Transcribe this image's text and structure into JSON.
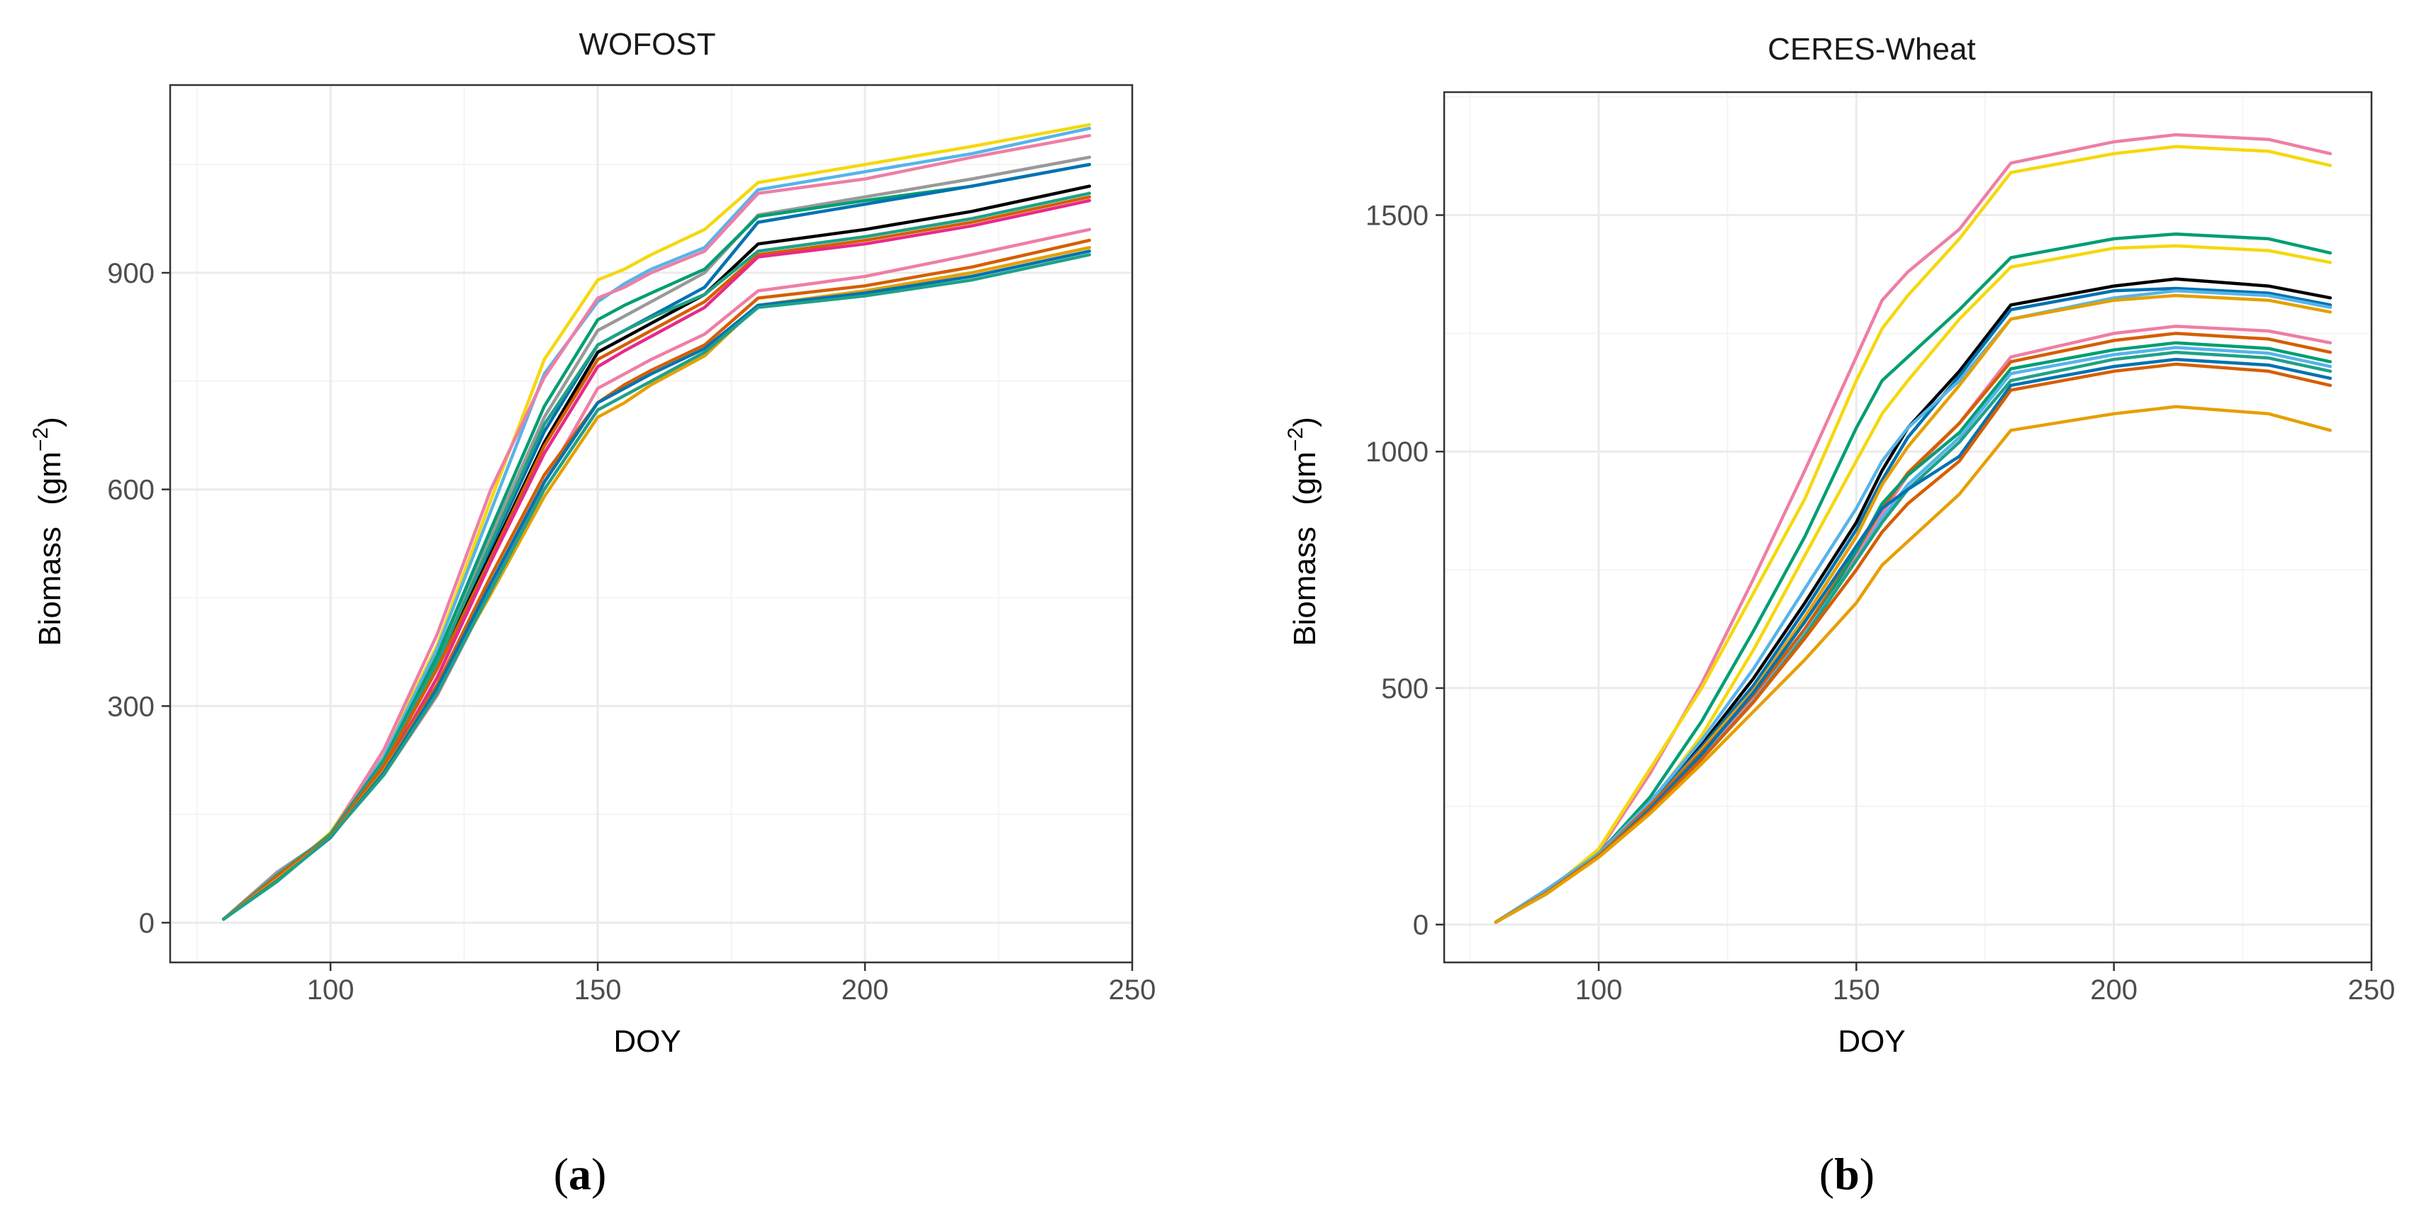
{
  "panels": [
    {
      "label": "a"
    },
    {
      "label": "b"
    }
  ],
  "chart_data": [
    {
      "type": "line",
      "title": "WOFOST",
      "xlabel": "DOY",
      "ylabel": "Biomass",
      "ylabel_unit": "(gm",
      "ylabel_exp": "−2",
      "ylabel_close": ")",
      "xlim": [
        70,
        250
      ],
      "ylim": [
        -55,
        1160
      ],
      "xticks": [
        100,
        150,
        200,
        250
      ],
      "yticks": [
        0,
        300,
        600,
        900
      ],
      "xtick_labels": [
        "100",
        "150",
        "200",
        "250"
      ],
      "ytick_labels": [
        "0",
        "300",
        "600",
        "900"
      ],
      "grid": true,
      "x": [
        80,
        90,
        100,
        110,
        120,
        130,
        140,
        150,
        155,
        160,
        170,
        180,
        200,
        220,
        242
      ],
      "series": [
        {
          "color": "#F5D80D",
          "values": [
            5,
            60,
            125,
            235,
            385,
            585,
            780,
            890,
            905,
            925,
            960,
            1025,
            1050,
            1075,
            1105
          ]
        },
        {
          "color": "#56B4E9",
          "values": [
            5,
            65,
            120,
            230,
            380,
            570,
            760,
            860,
            885,
            905,
            935,
            1015,
            1040,
            1065,
            1100
          ]
        },
        {
          "color": "#EE7EA6",
          "values": [
            5,
            62,
            122,
            240,
            400,
            600,
            755,
            865,
            880,
            900,
            930,
            1010,
            1030,
            1060,
            1090
          ]
        },
        {
          "color": "#999999",
          "values": [
            5,
            70,
            120,
            215,
            365,
            535,
            700,
            820,
            840,
            860,
            900,
            980,
            1005,
            1030,
            1060
          ]
        },
        {
          "color": "#009E73",
          "values": [
            5,
            62,
            123,
            225,
            370,
            545,
            715,
            835,
            855,
            872,
            905,
            978,
            1000,
            1020,
            1050
          ]
        },
        {
          "color": "#0072B2",
          "values": [
            5,
            58,
            120,
            215,
            355,
            520,
            680,
            800,
            820,
            840,
            880,
            970,
            995,
            1020,
            1050
          ]
        },
        {
          "color": "#000000",
          "values": [
            5,
            63,
            121,
            220,
            355,
            510,
            665,
            790,
            810,
            830,
            870,
            940,
            960,
            985,
            1020
          ]
        },
        {
          "color": "#1FA187",
          "values": [
            5,
            66,
            122,
            222,
            360,
            525,
            690,
            800,
            820,
            838,
            870,
            930,
            950,
            975,
            1010
          ]
        },
        {
          "color": "#D55E00",
          "values": [
            5,
            60,
            120,
            218,
            352,
            505,
            660,
            780,
            800,
            820,
            860,
            925,
            945,
            970,
            1005
          ]
        },
        {
          "color": "#E8298A",
          "values": [
            5,
            60,
            118,
            210,
            340,
            500,
            650,
            770,
            792,
            812,
            852,
            922,
            940,
            965,
            1000
          ]
        },
        {
          "color": "#EE7EA6",
          "values": [
            5,
            62,
            120,
            205,
            315,
            460,
            610,
            740,
            760,
            780,
            815,
            875,
            895,
            925,
            960
          ]
        },
        {
          "color": "#D55E00",
          "values": [
            5,
            64,
            120,
            212,
            330,
            480,
            620,
            720,
            745,
            765,
            800,
            865,
            882,
            908,
            945
          ]
        },
        {
          "color": "#E69F00",
          "values": [
            5,
            60,
            118,
            210,
            325,
            455,
            590,
            700,
            720,
            745,
            785,
            855,
            875,
            900,
            935
          ]
        },
        {
          "color": "#0072B2",
          "values": [
            5,
            58,
            118,
            208,
            325,
            470,
            610,
            720,
            740,
            760,
            795,
            855,
            872,
            895,
            930
          ]
        },
        {
          "color": "#1FA187",
          "values": [
            5,
            57,
            119,
            205,
            318,
            460,
            600,
            710,
            730,
            750,
            790,
            852,
            868,
            890,
            925
          ]
        }
      ]
    },
    {
      "type": "line",
      "title": "CERES-Wheat",
      "xlabel": "DOY",
      "ylabel": "Biomass",
      "ylabel_unit": "(gm",
      "ylabel_exp": "−2",
      "ylabel_close": ")",
      "xlim": [
        70,
        250
      ],
      "ylim": [
        -80,
        1760
      ],
      "xticks": [
        100,
        150,
        200,
        250
      ],
      "yticks": [
        0,
        500,
        1000,
        1500
      ],
      "xtick_labels": [
        "100",
        "150",
        "200",
        "250"
      ],
      "ytick_labels": [
        "0",
        "500",
        "1000",
        "1500"
      ],
      "grid": true,
      "x": [
        80,
        90,
        100,
        110,
        120,
        130,
        140,
        150,
        155,
        160,
        170,
        180,
        200,
        212,
        230,
        242
      ],
      "series": [
        {
          "color": "#EE7EA6",
          "values": [
            5,
            70,
            155,
            320,
            510,
            730,
            960,
            1200,
            1320,
            1380,
            1470,
            1610,
            1655,
            1670,
            1660,
            1630
          ]
        },
        {
          "color": "#F5D80D",
          "values": [
            5,
            70,
            160,
            330,
            500,
            700,
            900,
            1150,
            1260,
            1330,
            1450,
            1590,
            1630,
            1645,
            1635,
            1605
          ]
        },
        {
          "color": "#009E73",
          "values": [
            5,
            75,
            150,
            270,
            430,
            620,
            820,
            1050,
            1150,
            1200,
            1300,
            1410,
            1450,
            1460,
            1450,
            1420
          ]
        },
        {
          "color": "#F5D80D",
          "values": [
            5,
            72,
            148,
            255,
            400,
            580,
            780,
            980,
            1080,
            1150,
            1280,
            1390,
            1430,
            1435,
            1425,
            1400
          ]
        },
        {
          "color": "#000000",
          "values": [
            5,
            72,
            150,
            260,
            380,
            520,
            680,
            850,
            960,
            1050,
            1170,
            1310,
            1350,
            1365,
            1350,
            1325
          ]
        },
        {
          "color": "#0072B2",
          "values": [
            5,
            72,
            150,
            255,
            375,
            505,
            665,
            835,
            940,
            1030,
            1160,
            1300,
            1340,
            1345,
            1335,
            1310
          ]
        },
        {
          "color": "#56B4E9",
          "values": [
            5,
            75,
            150,
            260,
            390,
            540,
            710,
            880,
            980,
            1050,
            1150,
            1280,
            1325,
            1340,
            1330,
            1305
          ]
        },
        {
          "color": "#E69F00",
          "values": [
            5,
            70,
            148,
            250,
            370,
            495,
            650,
            820,
            930,
            1010,
            1140,
            1280,
            1320,
            1330,
            1320,
            1295
          ]
        },
        {
          "color": "#EE7EA6",
          "values": [
            5,
            68,
            146,
            250,
            360,
            480,
            620,
            780,
            870,
            950,
            1060,
            1200,
            1250,
            1265,
            1255,
            1230
          ]
        },
        {
          "color": "#D55E00",
          "values": [
            5,
            68,
            147,
            252,
            365,
            485,
            625,
            790,
            880,
            955,
            1060,
            1190,
            1235,
            1250,
            1238,
            1210
          ]
        },
        {
          "color": "#009E73",
          "values": [
            5,
            66,
            146,
            240,
            350,
            470,
            610,
            790,
            890,
            950,
            1040,
            1175,
            1215,
            1230,
            1218,
            1190
          ]
        },
        {
          "color": "#56B4E9",
          "values": [
            5,
            70,
            148,
            245,
            352,
            472,
            615,
            770,
            860,
            930,
            1030,
            1165,
            1205,
            1220,
            1208,
            1180
          ]
        },
        {
          "color": "#1FA187",
          "values": [
            5,
            68,
            146,
            242,
            350,
            470,
            610,
            770,
            850,
            920,
            1020,
            1150,
            1195,
            1210,
            1198,
            1170
          ]
        },
        {
          "color": "#0072B2",
          "values": [
            5,
            66,
            144,
            245,
            360,
            490,
            640,
            800,
            880,
            920,
            990,
            1140,
            1180,
            1195,
            1183,
            1155
          ]
        },
        {
          "color": "#D55E00",
          "values": [
            5,
            68,
            145,
            240,
            350,
            470,
            605,
            750,
            830,
            890,
            980,
            1130,
            1170,
            1185,
            1170,
            1140
          ]
        },
        {
          "color": "#E69F00",
          "values": [
            5,
            66,
            142,
            235,
            340,
            450,
            560,
            680,
            760,
            810,
            910,
            1045,
            1080,
            1095,
            1080,
            1045
          ]
        }
      ]
    }
  ]
}
